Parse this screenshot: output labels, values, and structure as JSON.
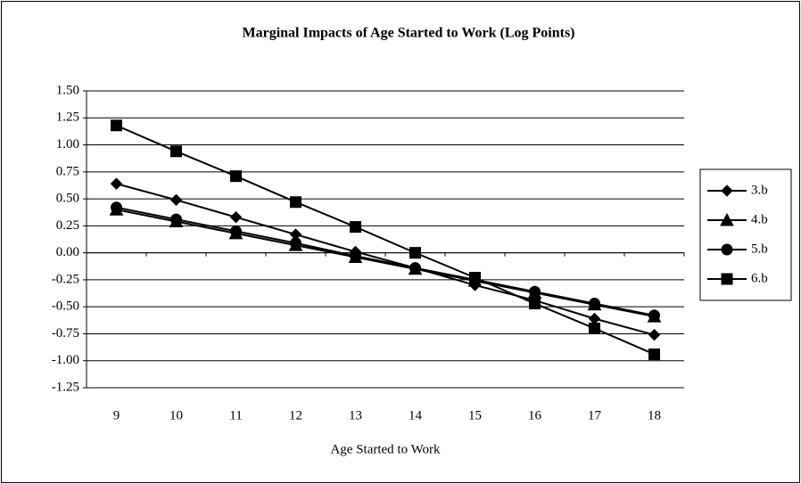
{
  "chart_data": {
    "type": "line",
    "title": "Marginal Impacts of Age Started to Work (Log Points)",
    "x_label": "Age Started to Work",
    "categories": [
      "9",
      "10",
      "11",
      "12",
      "13",
      "14",
      "15",
      "16",
      "17",
      "18"
    ],
    "series": [
      {
        "name": "3.b",
        "color": "#000000",
        "marker": "diamond",
        "values": [
          0.64,
          0.49,
          0.33,
          0.17,
          0.01,
          -0.14,
          -0.3,
          -0.44,
          -0.61,
          -0.76
        ]
      },
      {
        "name": "4.b",
        "color": "#000000",
        "marker": "triangle",
        "values": [
          0.4,
          0.29,
          0.18,
          0.07,
          -0.04,
          -0.15,
          -0.26,
          -0.37,
          -0.48,
          -0.59
        ]
      },
      {
        "name": "5.b",
        "color": "#000000",
        "marker": "circle",
        "values": [
          0.42,
          0.31,
          0.2,
          0.09,
          -0.03,
          -0.14,
          -0.25,
          -0.36,
          -0.47,
          -0.58
        ]
      },
      {
        "name": "6.b",
        "color": "#000000",
        "marker": "square",
        "values": [
          1.18,
          0.94,
          0.71,
          0.47,
          0.24,
          0.0,
          -0.23,
          -0.47,
          -0.7,
          -0.94
        ]
      }
    ],
    "ylim": [
      -1.25,
      1.5
    ],
    "yticks": [
      {
        "value": -1.25,
        "label": "-1.25"
      },
      {
        "value": -1,
        "label": "-1.00"
      },
      {
        "value": -0.75,
        "label": "-0.75"
      },
      {
        "value": -0.5,
        "label": "-0.50"
      },
      {
        "value": -0.25,
        "label": "-0.25"
      },
      {
        "value": 0,
        "label": "0.00"
      },
      {
        "value": 0.25,
        "label": "0.25"
      },
      {
        "value": 0.5,
        "label": "0.50"
      },
      {
        "value": 0.75,
        "label": "0.75"
      },
      {
        "value": 1,
        "label": "1.00"
      },
      {
        "value": 1.25,
        "label": "1.25"
      },
      {
        "value": 1.5,
        "label": "1.50"
      }
    ],
    "grid": true,
    "legend": "right"
  }
}
